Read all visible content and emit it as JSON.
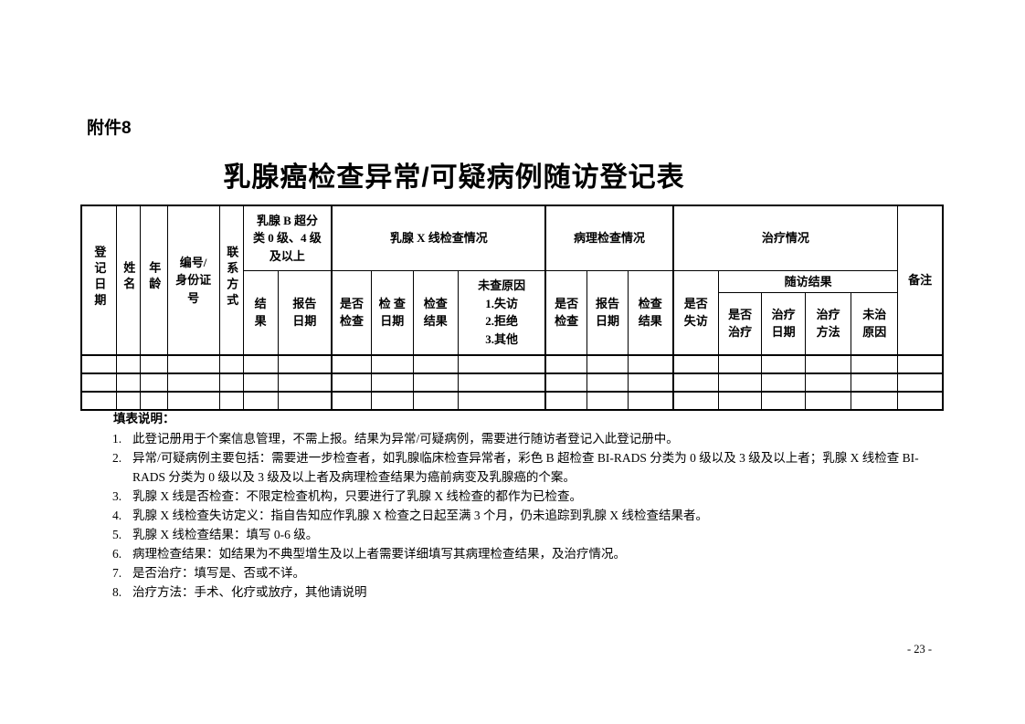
{
  "page": {
    "attachment_label": "附件8",
    "title": "乳腺癌检查异常/可疑病例随访登记表",
    "page_number": "- 23 -"
  },
  "table": {
    "columns_count": 20,
    "empty_rows": 3,
    "headers": {
      "reg_date": "登记日期",
      "name": "姓名",
      "age": "年龄",
      "id_number": "编号/\n身份证\n号",
      "contact": "联系方式",
      "b_ultrasound_group": "乳腺 B 超分\n类 0 级、4 级\n及以上",
      "b_result": "结\n果",
      "b_report_date": "报告\n日期",
      "xray_group": "乳腺 X 线检查情况",
      "xray_examined": "是否\n检查",
      "xray_exam_date": "检 查\n日期",
      "xray_result": "检查\n结果",
      "xray_no_exam_reason": "未查原因\n1.失访\n2.拒绝\n3.其他",
      "pathology_group": "病理检查情况",
      "path_examined": "是否\n检查",
      "path_report_date": "报告\n日期",
      "path_result": "检查\n结果",
      "treatment_group": "治疗情况",
      "lost_follow_up": "是否\n失访",
      "follow_up_group": "随访结果",
      "treated": "是否\n治疗",
      "treatment_date": "治疗\n日期",
      "treatment_method": "治疗\n方法",
      "no_treatment_reason": "未治\n原因",
      "remarks": "备注"
    }
  },
  "notes": {
    "heading": "填表说明：",
    "items": [
      {
        "num": "1.",
        "text": "此登记册用于个案信息管理，不需上报。结果为异常/可疑病例，需要进行随访者登记入此登记册中。"
      },
      {
        "num": "2.",
        "text": "异常/可疑病例主要包括：需要进一步检查者，如乳腺临床检查异常者，彩色 B 超检查 BI-RADS 分类为 0 级以及 3 级及以上者；乳腺 X 线检查 BI-RADS 分类为 0 级以及 3 级及以上者及病理检查结果为癌前病变及乳腺癌的个案。"
      },
      {
        "num": "3.",
        "text": "乳腺 X 线是否检查：不限定检查机构，只要进行了乳腺 X 线检查的都作为已检查。"
      },
      {
        "num": "4.",
        "text": "乳腺 X 线检查失访定义：指自告知应作乳腺 X 检查之日起至满 3 个月，仍未追踪到乳腺 X 线检查结果者。"
      },
      {
        "num": "5.",
        "text": "乳腺 X 线检查结果：填写 0-6 级。"
      },
      {
        "num": "6.",
        "text": "病理检查结果：如结果为不典型增生及以上者需要详细填写其病理检查结果，及治疗情况。"
      },
      {
        "num": "7.",
        "text": "是否治疗：填写是、否或不详。"
      },
      {
        "num": "8.",
        "text": "治疗方法：手术、化疗或放疗，其他请说明"
      }
    ]
  }
}
